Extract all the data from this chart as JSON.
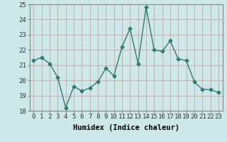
{
  "x": [
    0,
    1,
    2,
    3,
    4,
    5,
    6,
    7,
    8,
    9,
    10,
    11,
    12,
    13,
    14,
    15,
    16,
    17,
    18,
    19,
    20,
    21,
    22,
    23
  ],
  "y": [
    21.3,
    21.5,
    21.1,
    20.2,
    18.2,
    19.6,
    19.3,
    19.5,
    19.9,
    20.8,
    20.3,
    22.2,
    23.4,
    21.1,
    24.8,
    22.0,
    21.9,
    22.6,
    21.4,
    21.3,
    19.9,
    19.4,
    19.4,
    19.2
  ],
  "line_color": "#2e7d6e",
  "marker": "D",
  "marker_size": 2.5,
  "bg_color": "#cce8e8",
  "grid_color": "#d4a0a0",
  "xlabel": "Humidex (Indice chaleur)",
  "ylim": [
    18,
    25
  ],
  "xlim": [
    -0.5,
    23.5
  ],
  "yticks": [
    18,
    19,
    20,
    21,
    22,
    23,
    24,
    25
  ],
  "xticks": [
    0,
    1,
    2,
    3,
    4,
    5,
    6,
    7,
    8,
    9,
    10,
    11,
    12,
    13,
    14,
    15,
    16,
    17,
    18,
    19,
    20,
    21,
    22,
    23
  ],
  "xlabel_fontsize": 7.5,
  "tick_fontsize": 6.5,
  "line_width": 1.0,
  "spine_color": "#888888"
}
